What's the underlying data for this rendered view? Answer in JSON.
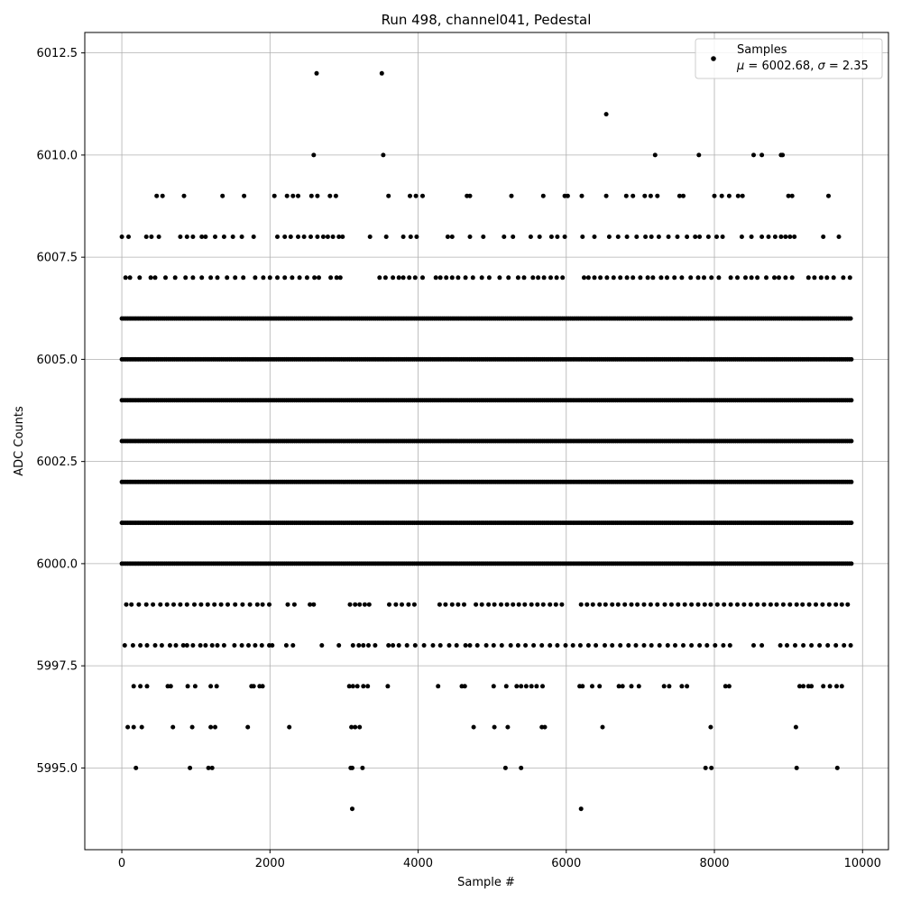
{
  "chart_data": {
    "type": "scatter",
    "title": "Run 498, channel041, Pedestal",
    "xlabel": "Sample #",
    "ylabel": "ADC Counts",
    "xlim": [
      -500,
      10350
    ],
    "ylim": [
      5993,
      6013
    ],
    "xticks": [
      0,
      2000,
      4000,
      6000,
      8000,
      10000
    ],
    "xtick_labels": [
      "0",
      "2000",
      "4000",
      "6000",
      "8000",
      "10000"
    ],
    "yticks": [
      5995.0,
      5997.5,
      6000.0,
      6002.5,
      6005.0,
      6007.5,
      6010.0,
      6012.5
    ],
    "ytick_labels": [
      "5995.0",
      "5997.5",
      "6000.0",
      "6002.5",
      "6005.0",
      "6007.5",
      "6010.0",
      "6012.5"
    ],
    "grid": true,
    "legend_position": "top-right",
    "series": [
      {
        "name": "Samples",
        "color": "#000000",
        "marker": "dot",
        "sample_count": 9850,
        "levels": [
          {
            "y": 6012,
            "x": [
              2630,
              3510
            ]
          },
          {
            "y": 6011,
            "x": [
              6540
            ]
          },
          {
            "y": 6010,
            "x": [
              2590,
              3530,
              7200,
              7790,
              8530,
              8640,
              8900,
              8920
            ]
          },
          {
            "y": 6009,
            "x": [
              470,
              550,
              840,
              1360,
              1650,
              2060,
              2230,
              2310,
              2380,
              2560,
              2640,
              2810,
              2890,
              3600,
              3890,
              3970,
              4060,
              4660,
              4700,
              5260,
              5690,
              5980,
              6020,
              6210,
              6540,
              6810,
              6900,
              7060,
              7140,
              7230,
              7530,
              7580,
              8000,
              8100,
              8200,
              8320,
              8380,
              9000,
              9050,
              9540
            ]
          },
          {
            "y": 6008,
            "x": [
              0,
              90,
              330,
              400,
              500,
              790,
              880,
              960,
              1080,
              1130,
              1260,
              1380,
              1500,
              1620,
              1780,
              2100,
              2200,
              2280,
              2380,
              2460,
              2550,
              2640,
              2720,
              2780,
              2850,
              2930,
              2980,
              3350,
              3570,
              3800,
              3900,
              3980,
              4400,
              4460,
              4700,
              4880,
              5160,
              5280,
              5520,
              5640,
              5800,
              5880,
              5980,
              6220,
              6380,
              6580,
              6700,
              6820,
              6950,
              7070,
              7150,
              7250,
              7380,
              7500,
              7630,
              7740,
              7800,
              7920,
              8030,
              8110,
              8370,
              8500,
              8640,
              8730,
              8820,
              8900,
              8960,
              9020,
              9080,
              9470,
              9680
            ]
          },
          {
            "y": 6007,
            "x": [
              50,
              110,
              240,
              390,
              450,
              590,
              720,
              860,
              960,
              1080,
              1200,
              1290,
              1420,
              1530,
              1640,
              1800,
              1910,
              2000,
              2100,
              2200,
              2300,
              2400,
              2500,
              2600,
              2660,
              2820,
              2900,
              2950,
              3480,
              3560,
              3660,
              3740,
              3800,
              3880,
              3960,
              4060,
              4240,
              4300,
              4380,
              4460,
              4540,
              4640,
              4740,
              4860,
              4960,
              5100,
              5220,
              5350,
              5430,
              5550,
              5620,
              5700,
              5790,
              5870,
              5950,
              6240,
              6300,
              6380,
              6460,
              6550,
              6640,
              6730,
              6820,
              6900,
              7000,
              7100,
              7170,
              7280,
              7360,
              7460,
              7560,
              7680,
              7780,
              7860,
              7960,
              8060,
              8220,
              8310,
              8420,
              8500,
              8580,
              8700,
              8810,
              8870,
              8960,
              9050,
              9270,
              9350,
              9440,
              9520,
              9610,
              9740,
              9830
            ]
          },
          {
            "y": 6006,
            "dense": true,
            "x_start": 0,
            "x_end": 9840
          },
          {
            "y": 6005,
            "dense": true,
            "x_start": 0,
            "x_end": 9850
          },
          {
            "y": 6004,
            "dense": true,
            "x_start": 0,
            "x_end": 9850
          },
          {
            "y": 6003,
            "dense": true,
            "x_start": 0,
            "x_end": 9850
          },
          {
            "y": 6002,
            "dense": true,
            "x_start": 0,
            "x_end": 9850
          },
          {
            "y": 6001,
            "dense": true,
            "x_start": 0,
            "x_end": 9850
          },
          {
            "y": 6000,
            "dense": true,
            "x_start": 0,
            "x_end": 9850
          },
          {
            "y": 5999,
            "x": [
              60,
              130,
              230,
              330,
              420,
              520,
              610,
              700,
              790,
              880,
              980,
              1070,
              1160,
              1250,
              1340,
              1430,
              1530,
              1630,
              1730,
              1830,
              1900,
              1990,
              2240,
              2330,
              2540,
              2590,
              3080,
              3150,
              3210,
              3280,
              3340,
              3610,
              3700,
              3780,
              3870,
              3950,
              4290,
              4370,
              4460,
              4540,
              4620,
              4780,
              4860,
              4950,
              5030,
              5120,
              5200,
              5280,
              5360,
              5440,
              5530,
              5610,
              5690,
              5780,
              5860,
              5940,
              6200,
              6280,
              6360,
              6450,
              6530,
              6620,
              6700,
              6790,
              6880,
              6960,
              7050,
              7140,
              7230,
              7330,
              7420,
              7510,
              7600,
              7690,
              7780,
              7870,
              7950,
              8040,
              8130,
              8220,
              8310,
              8400,
              8490,
              8580,
              8670,
              8760,
              8840,
              8930,
              9020,
              9110,
              9190,
              9280,
              9370,
              9460,
              9550,
              9640,
              9720,
              9800
            ]
          },
          {
            "y": 5998,
            "x": [
              40,
              150,
              250,
              340,
              450,
              540,
              650,
              730,
              830,
              880,
              960,
              1060,
              1130,
              1220,
              1290,
              1380,
              1520,
              1620,
              1710,
              1800,
              1890,
              1990,
              2030,
              2220,
              2310,
              2700,
              2930,
              3120,
              3200,
              3260,
              3330,
              3420,
              3600,
              3660,
              3740,
              3850,
              3960,
              4080,
              4200,
              4300,
              4420,
              4520,
              4640,
              4700,
              4800,
              4920,
              5020,
              5130,
              5250,
              5350,
              5450,
              5560,
              5670,
              5780,
              5880,
              5990,
              6090,
              6190,
              6300,
              6400,
              6520,
              6620,
              6730,
              6840,
              6940,
              7050,
              7150,
              7260,
              7370,
              7470,
              7580,
              7690,
              7800,
              7900,
              8010,
              8120,
              8210,
              8530,
              8640,
              8890,
              8980,
              9090,
              9200,
              9310,
              9420,
              9530,
              9640,
              9750,
              9840
            ]
          },
          {
            "y": 5997,
            "x": [
              160,
              250,
              340,
              620,
              660,
              890,
              990,
              1200,
              1280,
              1750,
              1780,
              1860,
              1900,
              3070,
              3120,
              3180,
              3260,
              3320,
              3590,
              4270,
              4590,
              4630,
              5020,
              5190,
              5330,
              5390,
              5460,
              5530,
              5600,
              5680,
              6180,
              6220,
              6350,
              6450,
              6710,
              6760,
              6880,
              6980,
              7320,
              7390,
              7560,
              7630,
              8150,
              8200,
              9150,
              9200,
              9270,
              9310,
              9470,
              9560,
              9650,
              9720
            ]
          },
          {
            "y": 5996,
            "x": [
              80,
              160,
              270,
              690,
              950,
              1200,
              1260,
              1700,
              2260,
              3100,
              3150,
              3210,
              4750,
              5030,
              5210,
              5670,
              5710,
              6490,
              7950,
              9100
            ]
          },
          {
            "y": 5995,
            "x": [
              190,
              920,
              1170,
              1220,
              3090,
              3110,
              3250,
              5180,
              5390,
              7880,
              7960,
              9110,
              9660
            ]
          },
          {
            "y": 5994,
            "x": [
              3110,
              6200
            ]
          }
        ]
      }
    ],
    "legend": {
      "label": "Samples",
      "stats": "μ = 6002.68, σ = 2.35",
      "mu_symbol": "μ",
      "mu_text": " = 6002.68, ",
      "sigma_symbol": "σ",
      "sigma_text": " = 2.35"
    }
  }
}
